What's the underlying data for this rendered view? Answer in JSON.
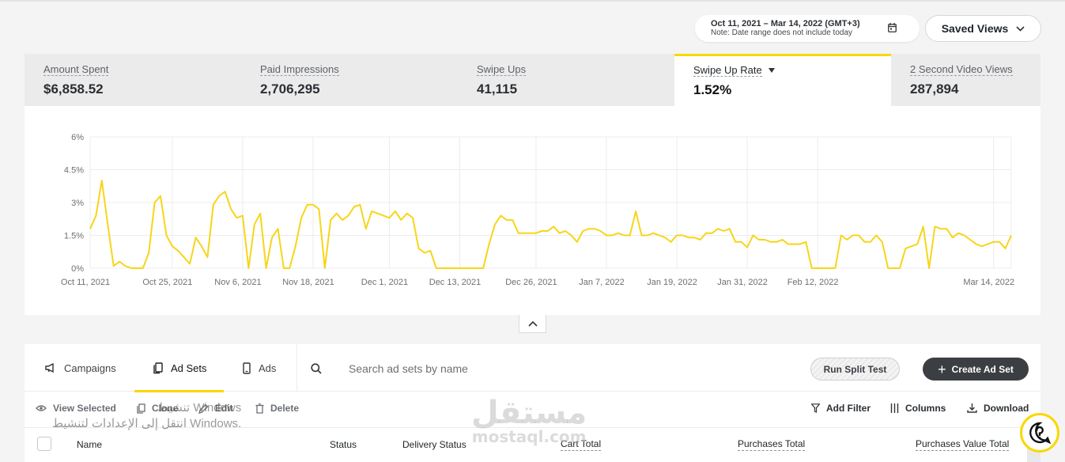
{
  "date_range": {
    "label": "Oct 11, 2021 – Mar 14, 2022 (GMT+3)",
    "note": "Note: Date range does not include today"
  },
  "saved_views_label": "Saved Views",
  "metrics": [
    {
      "label": "Amount Spent",
      "value": "$6,858.52"
    },
    {
      "label": "Paid Impressions",
      "value": "2,706,295"
    },
    {
      "label": "Swipe Ups",
      "value": "41,115"
    },
    {
      "label": "Swipe Up Rate",
      "value": "1.52%"
    },
    {
      "label": "2 Second Video Views",
      "value": "287,894"
    }
  ],
  "chart_data": {
    "type": "line",
    "title": "",
    "xlabel": "",
    "ylabel": "",
    "ylim": [
      0,
      6
    ],
    "y_ticks": [
      "6%",
      "4.5%",
      "3%",
      "1.5%",
      "0%"
    ],
    "x_ticks": [
      "Oct 11, 2021",
      "Oct 25, 2021",
      "Nov 6, 2021",
      "Nov 18, 2021",
      "Dec 1, 2021",
      "Dec 13, 2021",
      "Dec 26, 2021",
      "Jan 7, 2022",
      "Jan 19, 2022",
      "Jan 31, 2022",
      "Feb 12, 2022",
      "Mar 14, 2022"
    ],
    "grid": true,
    "color": "#F7D51A",
    "start_date": "2021-10-11",
    "values": [
      1.8,
      2.4,
      4.0,
      2.0,
      0.1,
      0.3,
      0.1,
      0.0,
      0.0,
      0.0,
      0.7,
      3.0,
      3.3,
      1.5,
      1.0,
      0.8,
      0.5,
      0.2,
      1.4,
      1.0,
      0.5,
      2.9,
      3.3,
      3.5,
      2.7,
      2.3,
      2.4,
      0.0,
      2.0,
      2.5,
      0.0,
      1.4,
      1.8,
      0.0,
      0.0,
      1.0,
      2.3,
      2.9,
      2.9,
      2.7,
      0.0,
      2.2,
      2.5,
      2.2,
      2.4,
      2.8,
      2.9,
      1.8,
      2.6,
      2.5,
      2.4,
      2.3,
      2.6,
      2.2,
      2.5,
      2.3,
      0.9,
      0.7,
      0.8,
      0.0,
      0.0,
      0.0,
      0.0,
      0.0,
      0.0,
      0.0,
      0.0,
      0.0,
      1.1,
      2.0,
      2.4,
      2.2,
      2.2,
      1.6,
      1.6,
      1.6,
      1.6,
      1.7,
      1.7,
      1.9,
      1.6,
      1.7,
      1.5,
      1.2,
      1.7,
      1.8,
      1.8,
      1.7,
      1.5,
      1.5,
      1.6,
      1.5,
      1.5,
      2.6,
      1.5,
      1.5,
      1.6,
      1.5,
      1.4,
      1.2,
      1.5,
      1.5,
      1.4,
      1.4,
      1.3,
      1.6,
      1.6,
      1.8,
      1.7,
      1.8,
      1.2,
      1.2,
      0.95,
      1.5,
      1.3,
      1.3,
      1.2,
      1.2,
      1.3,
      1.1,
      1.1,
      1.1,
      1.2,
      0.0,
      0.0,
      0.0,
      0.0,
      0.0,
      1.5,
      1.3,
      1.5,
      1.5,
      1.2,
      1.2,
      1.5,
      1.2,
      0.0,
      0.0,
      0.0,
      0.9,
      1.0,
      1.1,
      1.9,
      0.0,
      1.9,
      1.8,
      1.8,
      1.4,
      1.6,
      1.5,
      1.3,
      1.1,
      1.0,
      1.1,
      1.2,
      1.2,
      0.9,
      1.5
    ]
  },
  "table": {
    "tabs": [
      {
        "label": "Campaigns",
        "icon": "megaphone-icon"
      },
      {
        "label": "Ad Sets",
        "icon": "adsets-icon"
      },
      {
        "label": "Ads",
        "icon": "phone-icon"
      }
    ],
    "search_placeholder": "Search ad sets by name",
    "run_split_test_label": "Run Split Test",
    "create_label": "Create Ad Set",
    "actions": {
      "view_selected": "View Selected",
      "clone": "Clone",
      "edit": "Edit",
      "delete": "Delete",
      "add_filter": "Add Filter",
      "columns": "Columns",
      "download": "Download"
    },
    "columns": {
      "name": "Name",
      "status": "Status",
      "delivery_status": "Delivery Status",
      "cart_total": "Cart Total",
      "purchases_total": "Purchases Total",
      "purchases_value_total": "Purchases Value Total"
    }
  },
  "windows_watermark": {
    "line1": "تنشيط Windows",
    "line2": "انتقل إلى الإعدادات لتنشيط Windows."
  },
  "logo": {
    "arabic": "مستقل",
    "latin": "mostaql.com"
  }
}
